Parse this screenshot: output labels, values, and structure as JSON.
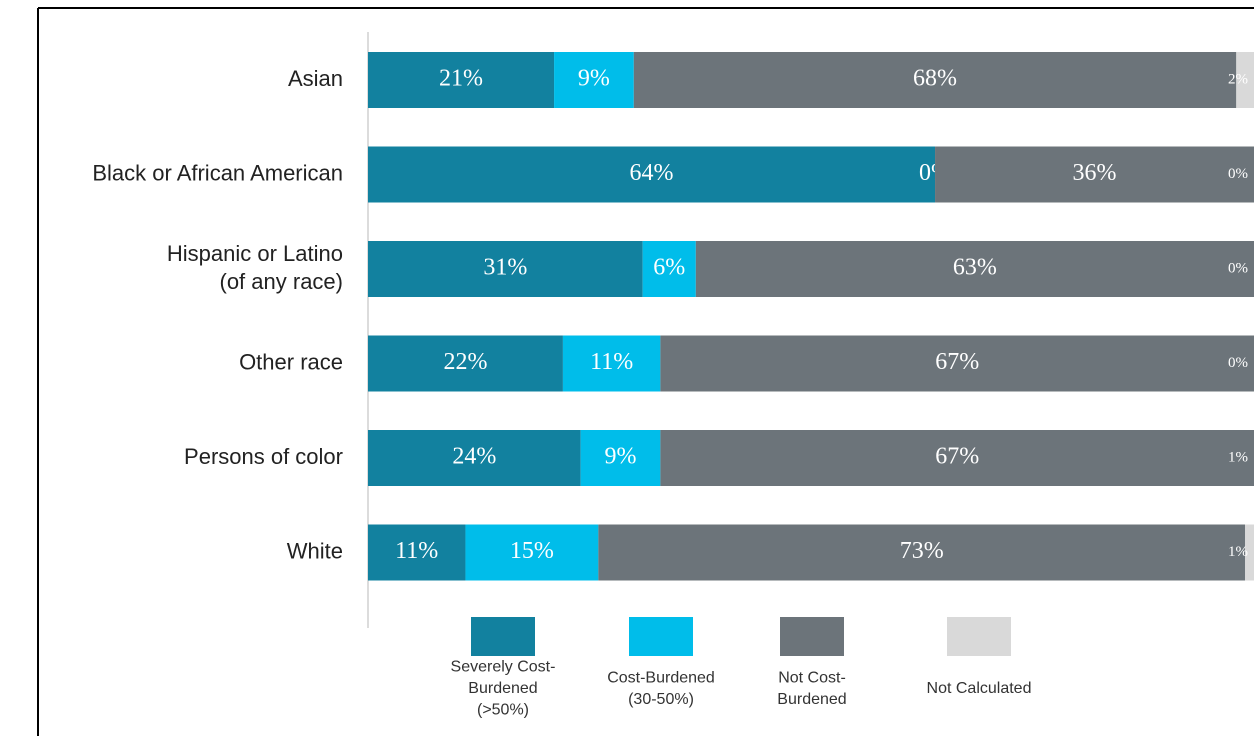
{
  "chart_data": {
    "type": "stacked-bar-horizontal",
    "categories": [
      "Asian",
      "Black or African American",
      "Hispanic or Latino\n(of any race)",
      "Other race",
      "Persons of color",
      "White"
    ],
    "xlim": [
      0,
      100
    ],
    "series": [
      {
        "name": "Severely Cost-\nBurdened\n(>50%)",
        "color": "#12819f",
        "values": [
          21,
          64,
          31,
          22,
          24,
          11
        ],
        "value_labels": [
          "21%",
          "64%",
          "31%",
          "22%",
          "24%",
          "11%"
        ]
      },
      {
        "name": "Cost-Burdened\n(30-50%)",
        "color": "#00bdea",
        "values": [
          9,
          0,
          6,
          11,
          9,
          15
        ],
        "value_labels": [
          "9%",
          "0%",
          "6%",
          "11%",
          "9%",
          "15%"
        ]
      },
      {
        "name": "Not Cost-\nBurdened",
        "color": "#6c747a",
        "values": [
          68,
          36,
          63,
          67,
          67,
          73
        ],
        "value_labels": [
          "68%",
          "36%",
          "63%",
          "67%",
          "67%",
          "73%"
        ]
      },
      {
        "name": "Not Calculated",
        "color": "#d9d9d9",
        "values": [
          2,
          0,
          0,
          0,
          1,
          1
        ],
        "value_labels": [
          "2%",
          "0%",
          "0%",
          "0%",
          "1%",
          "1%"
        ]
      }
    ]
  }
}
